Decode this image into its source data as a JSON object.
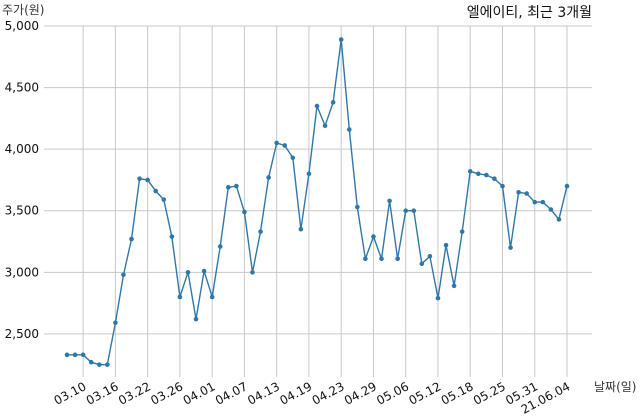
{
  "chart_data": {
    "type": "line",
    "title": "엘에이티, 최근 3개월",
    "xlabel": "날짜(일)",
    "ylabel": "주가(원)",
    "ylim": [
      2150,
      5000
    ],
    "yticks": [
      2500,
      3000,
      3500,
      4000,
      4500,
      5000
    ],
    "ytick_labels": [
      "2,500",
      "3,000",
      "3,500",
      "4,000",
      "4,500",
      "5,000"
    ],
    "xtick_labels": [
      "03.10",
      "03.16",
      "03.22",
      "03.26",
      "04.01",
      "04.07",
      "04.13",
      "04.19",
      "04.23",
      "04.29",
      "05.06",
      "05.12",
      "05.18",
      "05.25",
      "05.31",
      "21.06.04"
    ],
    "xtick_index": [
      2,
      6,
      10,
      14,
      18,
      22,
      26,
      30,
      34,
      38,
      42,
      46,
      50,
      54,
      58,
      62
    ],
    "grid": true,
    "color": "#2e78a8",
    "series": [
      {
        "values": [
          2330,
          2330,
          2330,
          2270,
          2250,
          2250,
          2590,
          2980,
          3270,
          3760,
          3750,
          3660,
          3590,
          3290,
          2800,
          3000,
          2620,
          3010,
          2800,
          3210,
          3690,
          3700,
          3490,
          3000,
          3330,
          3770,
          4050,
          4030,
          3930,
          3350,
          3800,
          4350,
          4190,
          4380,
          4890,
          4160,
          3530,
          3110,
          3290,
          3110,
          3580,
          3110,
          3500,
          3500,
          3070,
          3130,
          2790,
          3220,
          2890,
          3330,
          3820,
          3800,
          3790,
          3760,
          3700,
          3200,
          3650,
          3640,
          3570,
          3570,
          3510,
          3430,
          3700
        ]
      }
    ]
  }
}
